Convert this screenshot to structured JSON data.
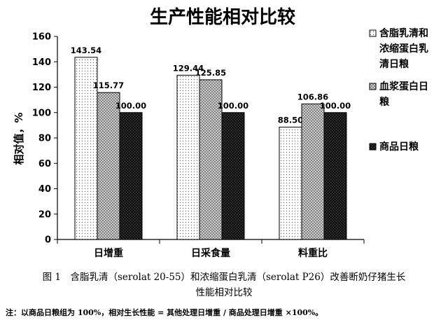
{
  "chart_data": {
    "type": "bar",
    "title": "生产性能相对比较",
    "ylabel": "相对值，%",
    "ylim": [
      0,
      160
    ],
    "yticks": [
      0,
      20,
      40,
      60,
      80,
      100,
      120,
      140,
      160
    ],
    "grid": false,
    "legend_position": "right",
    "categories": [
      "日增重",
      "日采食量",
      "料重比"
    ],
    "series": [
      {
        "name": "含脂乳清和浓缩蛋白乳清日粮",
        "legend_lines": [
          "含脂乳清和",
          "浓缩蛋白乳",
          "清日粮"
        ],
        "values": [
          143.54,
          129.44,
          88.5
        ],
        "labels": [
          "143.54",
          "129.44",
          "88.50"
        ],
        "pattern": "dots",
        "color": "#ffffff"
      },
      {
        "name": "血浆蛋白日粮",
        "legend_lines": [
          "血浆蛋白日",
          "粮"
        ],
        "values": [
          115.77,
          125.85,
          106.86
        ],
        "labels": [
          "115.77",
          "125.85",
          "106.86"
        ],
        "pattern": "checker",
        "color": "#b0b0b0"
      },
      {
        "name": "商品日粮",
        "legend_lines": [
          "商品日粮"
        ],
        "values": [
          100.0,
          100.0,
          100.0
        ],
        "labels": [
          "100.00",
          "100.00",
          "100.00"
        ],
        "pattern": "dark",
        "color": "#1a1a1a"
      }
    ]
  },
  "caption": {
    "line1": "图 1　含脂乳清（serolat 20-55）和浓缩蛋白乳清（serolat P26）改善断奶仔猪生长",
    "line2": "性能相对比较"
  },
  "note": "注：以商品日粮组为 100%，相对生长性能 = 其他处理日增重 / 商品处理日增重 ×100%。"
}
